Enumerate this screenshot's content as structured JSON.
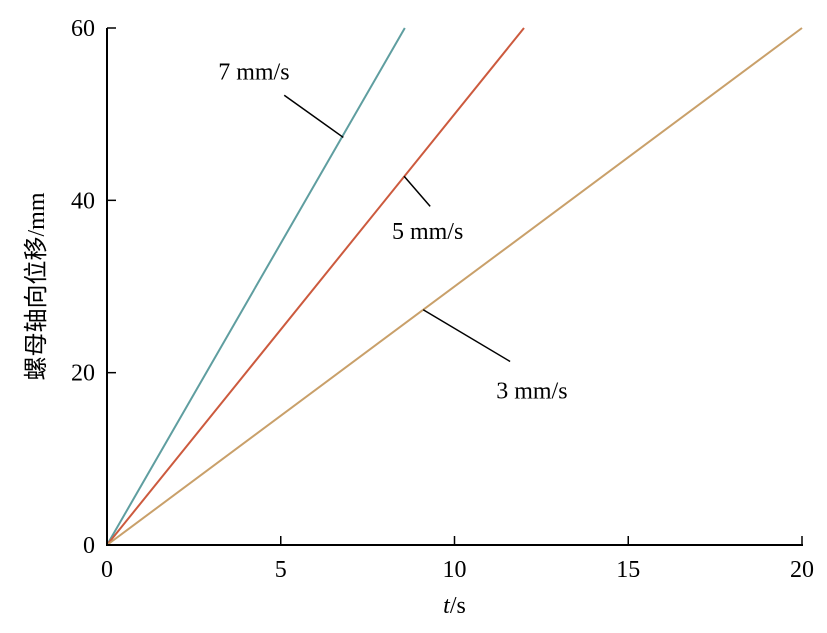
{
  "chart_data": {
    "type": "line",
    "title": "",
    "xlabel_italic": "t",
    "xlabel_rest": "/s",
    "ylabel": "螺母轴向位移/mm",
    "xlim": [
      0,
      20
    ],
    "ylim": [
      0,
      60
    ],
    "x_ticks": [
      "0",
      "5",
      "10",
      "15",
      "20"
    ],
    "y_ticks": [
      "0",
      "20",
      "40",
      "60"
    ],
    "grid": false,
    "series": [
      {
        "name": "7 mm/s",
        "color": "#5f9ea0",
        "x": [
          0,
          8.57
        ],
        "y": [
          0,
          60
        ],
        "label_x": 3.2,
        "label_y": 54,
        "leader_from": [
          5.1,
          52.2
        ],
        "leader_to": [
          6.8,
          47.3
        ]
      },
      {
        "name": "5 mm/s",
        "color": "#cc5a3e",
        "x": [
          0,
          12
        ],
        "y": [
          0,
          60
        ],
        "label_x": 8.2,
        "label_y": 35.5,
        "leader_from": [
          9.3,
          39.3
        ],
        "leader_to": [
          8.55,
          42.8
        ]
      },
      {
        "name": "3 mm/s",
        "color": "#c9a06a",
        "x": [
          0,
          20
        ],
        "y": [
          0,
          60
        ],
        "label_x": 11.2,
        "label_y": 17,
        "leader_from": [
          11.6,
          21.3
        ],
        "leader_to": [
          9.1,
          27.3
        ]
      }
    ]
  }
}
